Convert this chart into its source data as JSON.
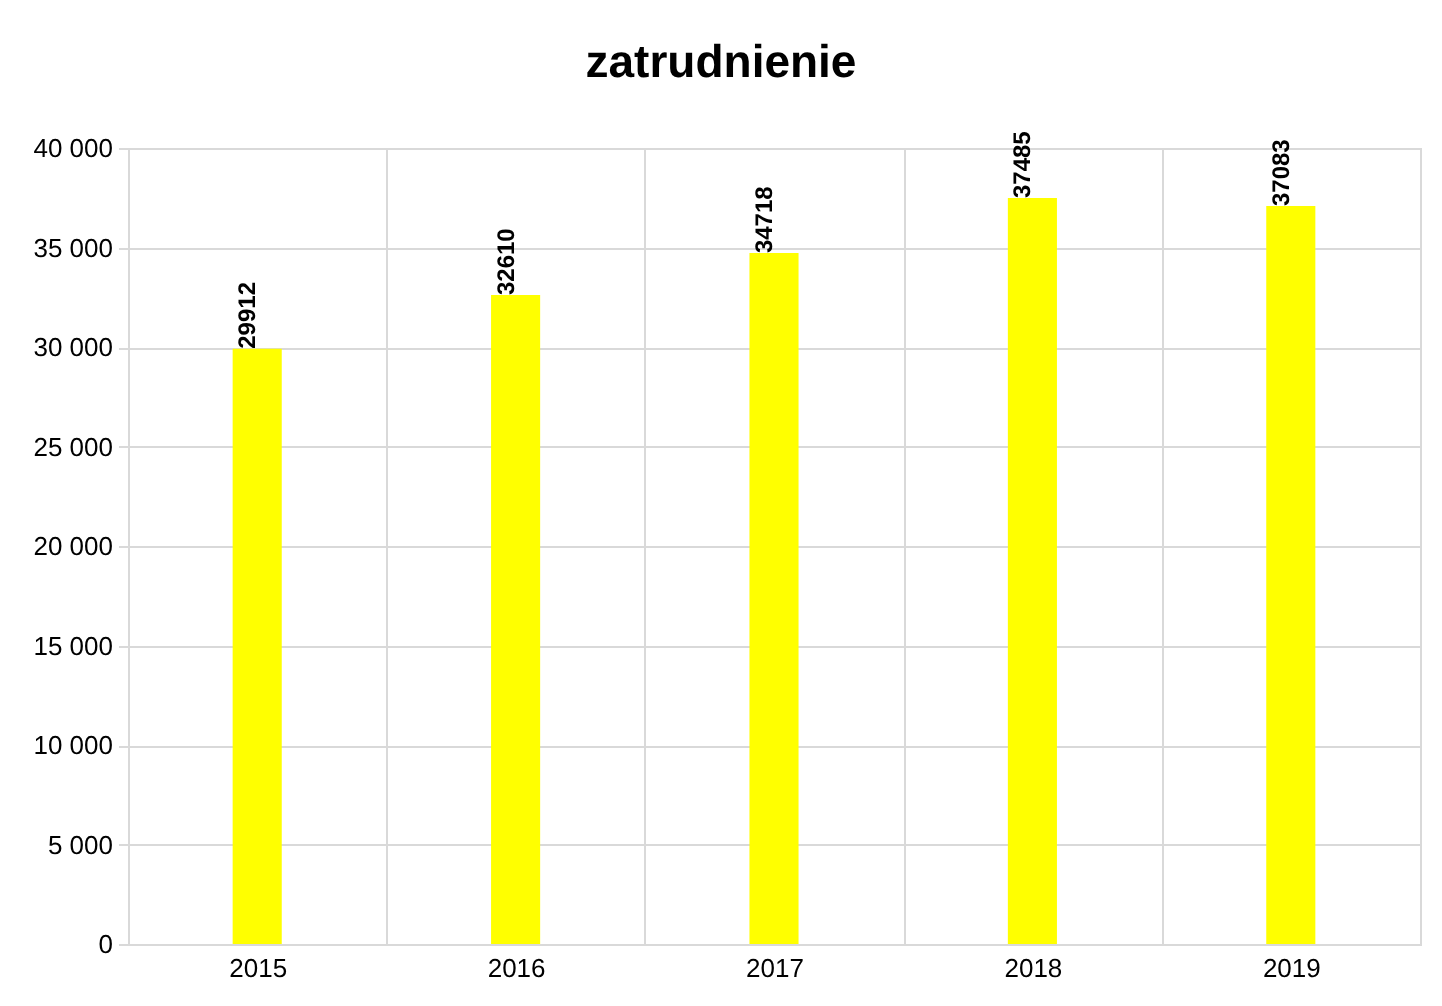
{
  "chart_data": {
    "type": "bar",
    "title": "zatrudnienie",
    "categories": [
      "2015",
      "2016",
      "2017",
      "2018",
      "2019"
    ],
    "values": [
      29912,
      32610,
      34718,
      37485,
      37083
    ],
    "color": "#ffff00",
    "ylim": [
      0,
      40000
    ],
    "yticks": [
      0,
      {
        "value": 5000,
        "label": "5 000"
      },
      {
        "value": 10000,
        "label": "10 000"
      },
      {
        "value": 15000,
        "label": "15 000"
      },
      {
        "value": 20000,
        "label": "20 000"
      },
      {
        "value": 25000,
        "label": "25 000"
      },
      {
        "value": 30000,
        "label": "30 000"
      },
      {
        "value": 35000,
        "label": "35 000"
      },
      {
        "value": 40000,
        "label": "40 000"
      }
    ],
    "grid": true,
    "data_labels": true
  }
}
